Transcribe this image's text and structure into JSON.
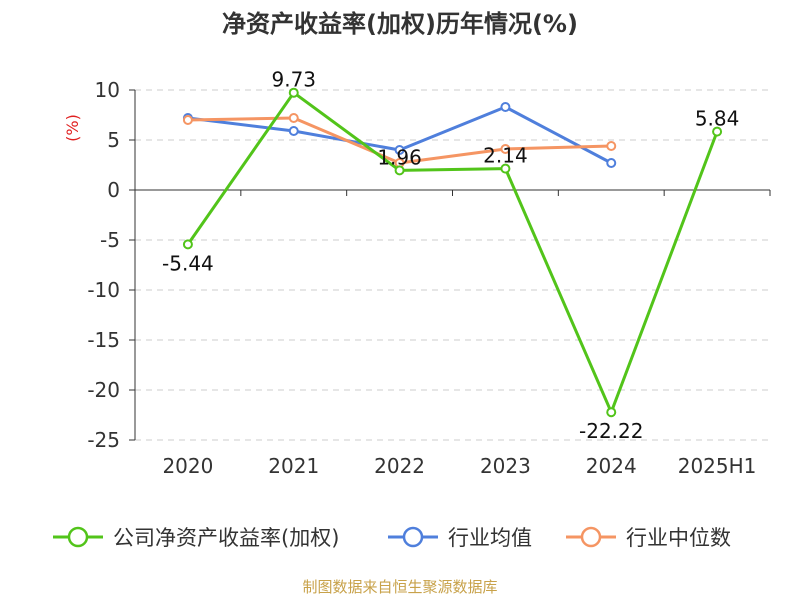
{
  "chart_data": {
    "type": "line",
    "title": "净资产收益率(加权)历年情况(%)",
    "unit_label": "(%)",
    "categories": [
      "2020",
      "2021",
      "2022",
      "2023",
      "2024",
      "2025H1"
    ],
    "ylim": [
      -25,
      10
    ],
    "yticks": [
      10,
      5,
      0,
      -5,
      -10,
      -15,
      -20,
      -25
    ],
    "grid": true,
    "legend_position": "bottom",
    "series": [
      {
        "name": "公司净资产收益率(加权)",
        "color": "#52c41a",
        "values": [
          -5.44,
          9.73,
          1.96,
          2.14,
          -22.22,
          5.84
        ],
        "labels": [
          "-5.44",
          "9.73",
          "1.96",
          "2.14",
          "-22.22",
          "5.84"
        ]
      },
      {
        "name": "行业均值",
        "color": "#4f7fdc",
        "values": [
          7.2,
          5.9,
          4.0,
          8.3,
          2.7,
          null
        ]
      },
      {
        "name": "行业中位数",
        "color": "#f59563",
        "values": [
          7.0,
          7.2,
          2.7,
          4.1,
          4.4,
          null
        ]
      }
    ]
  },
  "source": "制图数据来自恒生聚源数据库"
}
